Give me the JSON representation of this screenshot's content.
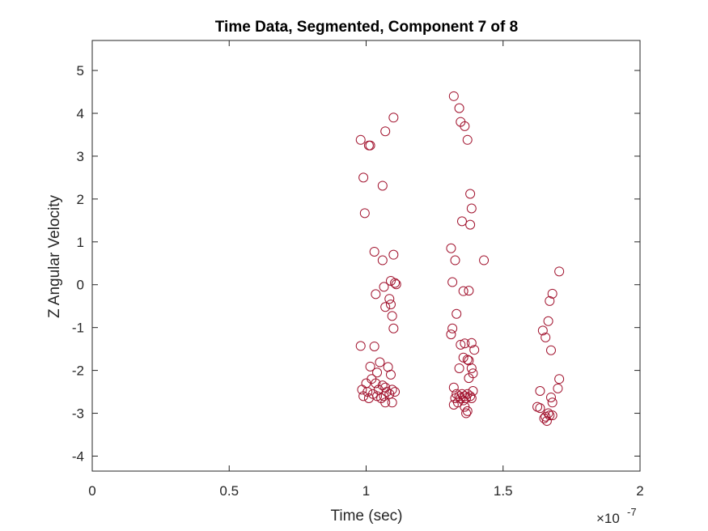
{
  "chart_data": {
    "type": "scatter",
    "title": "Time Data, Segmented, Component 7 of 8",
    "xlabel": "Time (sec)",
    "ylabel": "Z Angular Velocity",
    "x_exponent_label": "×10",
    "x_exponent_power": "-7",
    "x_scale_factor": 1e-07,
    "xlim": [
      0,
      2
    ],
    "ylim": [
      -4.35,
      5.7
    ],
    "xticks": [
      0,
      0.5,
      1,
      1.5,
      2
    ],
    "xtick_labels": [
      "0",
      "0.5",
      "1",
      "1.5",
      "2"
    ],
    "yticks": [
      -4,
      -3,
      -2,
      -1,
      0,
      1,
      2,
      3,
      4,
      5
    ],
    "ytick_labels": [
      "-4",
      "-3",
      "-2",
      "-1",
      "0",
      "1",
      "2",
      "3",
      "4",
      "5"
    ],
    "grid": false,
    "marker": "circle-open",
    "marker_color": "#A2142F",
    "series": [
      {
        "points": [
          [
            0.98,
            3.38
          ],
          [
            1.01,
            3.25
          ],
          [
            1.015,
            3.25
          ],
          [
            1.07,
            3.58
          ],
          [
            1.1,
            3.9
          ],
          [
            0.99,
            2.5
          ],
          [
            1.06,
            2.31
          ],
          [
            0.995,
            1.67
          ],
          [
            1.03,
            0.77
          ],
          [
            1.06,
            0.57
          ],
          [
            1.1,
            0.7
          ],
          [
            1.09,
            0.09
          ],
          [
            1.105,
            0.04
          ],
          [
            1.11,
            0.01
          ],
          [
            1.065,
            -0.05
          ],
          [
            1.035,
            -0.22
          ],
          [
            1.085,
            -0.33
          ],
          [
            1.07,
            -0.52
          ],
          [
            1.09,
            -0.46
          ],
          [
            1.095,
            -0.73
          ],
          [
            1.1,
            -1.02
          ],
          [
            0.98,
            -1.43
          ],
          [
            1.03,
            -1.44
          ],
          [
            1.05,
            -1.81
          ],
          [
            1.015,
            -1.91
          ],
          [
            1.08,
            -1.92
          ],
          [
            1.04,
            -2.05
          ],
          [
            1.09,
            -2.1
          ],
          [
            1.02,
            -2.2
          ],
          [
            1.035,
            -2.3
          ],
          [
            1.0,
            -2.3
          ],
          [
            1.06,
            -2.35
          ],
          [
            1.07,
            -2.4
          ],
          [
            0.985,
            -2.45
          ],
          [
            1.005,
            -2.5
          ],
          [
            1.045,
            -2.45
          ],
          [
            1.075,
            -2.5
          ],
          [
            1.095,
            -2.45
          ],
          [
            1.105,
            -2.5
          ],
          [
            1.025,
            -2.55
          ],
          [
            1.065,
            -2.6
          ],
          [
            0.99,
            -2.6
          ],
          [
            1.01,
            -2.65
          ],
          [
            1.04,
            -2.6
          ],
          [
            1.055,
            -2.65
          ],
          [
            1.085,
            -2.55
          ],
          [
            1.07,
            -2.75
          ],
          [
            1.095,
            -2.75
          ],
          [
            1.32,
            4.4
          ],
          [
            1.34,
            4.12
          ],
          [
            1.345,
            3.8
          ],
          [
            1.36,
            3.7
          ],
          [
            1.37,
            3.38
          ],
          [
            1.38,
            2.12
          ],
          [
            1.385,
            1.78
          ],
          [
            1.35,
            1.48
          ],
          [
            1.38,
            1.4
          ],
          [
            1.31,
            0.85
          ],
          [
            1.325,
            0.57
          ],
          [
            1.43,
            0.57
          ],
          [
            1.315,
            0.06
          ],
          [
            1.355,
            -0.15
          ],
          [
            1.375,
            -0.14
          ],
          [
            1.33,
            -0.68
          ],
          [
            1.315,
            -1.02
          ],
          [
            1.31,
            -1.16
          ],
          [
            1.345,
            -1.4
          ],
          [
            1.36,
            -1.37
          ],
          [
            1.385,
            -1.36
          ],
          [
            1.395,
            -1.52
          ],
          [
            1.355,
            -1.7
          ],
          [
            1.37,
            -1.75
          ],
          [
            1.375,
            -1.77
          ],
          [
            1.34,
            -1.95
          ],
          [
            1.385,
            -1.95
          ],
          [
            1.39,
            -2.07
          ],
          [
            1.375,
            -2.18
          ],
          [
            1.32,
            -2.4
          ],
          [
            1.39,
            -2.48
          ],
          [
            1.33,
            -2.55
          ],
          [
            1.34,
            -2.6
          ],
          [
            1.35,
            -2.55
          ],
          [
            1.36,
            -2.6
          ],
          [
            1.37,
            -2.55
          ],
          [
            1.38,
            -2.6
          ],
          [
            1.325,
            -2.65
          ],
          [
            1.345,
            -2.65
          ],
          [
            1.355,
            -2.7
          ],
          [
            1.365,
            -2.65
          ],
          [
            1.385,
            -2.65
          ],
          [
            1.32,
            -2.8
          ],
          [
            1.335,
            -2.75
          ],
          [
            1.36,
            -2.85
          ],
          [
            1.37,
            -2.95
          ],
          [
            1.365,
            -3.0
          ],
          [
            1.705,
            0.31
          ],
          [
            1.68,
            -0.21
          ],
          [
            1.67,
            -0.38
          ],
          [
            1.665,
            -0.85
          ],
          [
            1.645,
            -1.07
          ],
          [
            1.655,
            -1.23
          ],
          [
            1.675,
            -1.53
          ],
          [
            1.705,
            -2.2
          ],
          [
            1.7,
            -2.42
          ],
          [
            1.635,
            -2.48
          ],
          [
            1.675,
            -2.63
          ],
          [
            1.68,
            -2.75
          ],
          [
            1.625,
            -2.85
          ],
          [
            1.635,
            -2.88
          ],
          [
            1.665,
            -3.0
          ],
          [
            1.67,
            -3.05
          ],
          [
            1.68,
            -3.05
          ],
          [
            1.65,
            -3.12
          ],
          [
            1.66,
            -3.18
          ],
          [
            1.655,
            -3.08
          ]
        ]
      }
    ]
  }
}
